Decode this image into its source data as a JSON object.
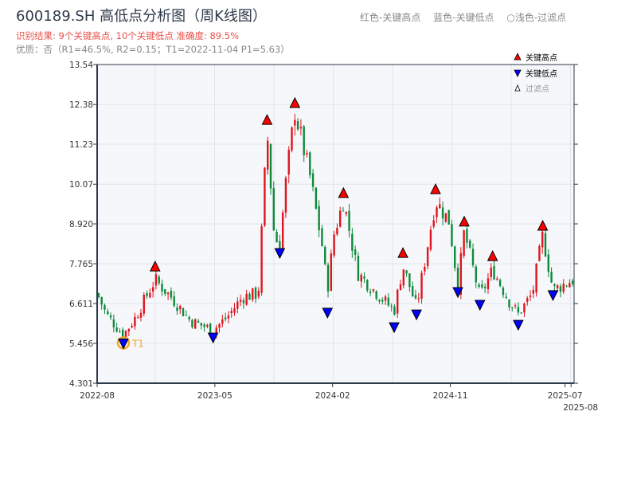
{
  "header": {
    "title": "600189.SH 高低点分析图（周K线图）",
    "result": "识别结果: 9个关键高点, 10个关键低点  准确度: 89.5%",
    "quality": "优质：否（R1=46.5%, R2=0.15；T1=2022-11-04 P1=5.63）",
    "legend_red": "红色-关键高点",
    "legend_blue": "蓝色-关键低点",
    "legend_light": "○浅色-过滤点"
  },
  "colors": {
    "up": "#e0141e",
    "down": "#0e8a3a",
    "high_marker": "#ff0000",
    "low_marker": "#0000ff",
    "t1": "#f5a623",
    "axis": "#2d3a4a"
  },
  "chart_data": {
    "type": "candlestick",
    "title": "600189.SH 高低点分析图（周K线图）",
    "ylim": [
      4.301,
      13.54
    ],
    "yticks": [
      "4.301",
      "5.456",
      "6.611",
      "7.765",
      "8.920",
      "10.07",
      "11.23",
      "12.38",
      "13.54"
    ],
    "ytick_values": [
      4.301,
      5.456,
      6.611,
      7.765,
      8.92,
      10.07,
      11.23,
      12.38,
      13.54
    ],
    "xlim_weeks": [
      0,
      158
    ],
    "xticks": [
      {
        "label": "2022-08",
        "week": 0
      },
      {
        "label": "2023-05",
        "week": 39
      },
      {
        "label": "2024-02",
        "week": 78
      },
      {
        "label": "2024-11",
        "week": 117
      },
      {
        "label": "2025-07",
        "week": 155
      },
      {
        "label": "2025-08",
        "week": 157
      }
    ],
    "price_path_weeks": [
      [
        0,
        6.9
      ],
      [
        3,
        6.3
      ],
      [
        8.7,
        5.7
      ],
      [
        12.6,
        6.2
      ],
      [
        19.2,
        7.3
      ],
      [
        24.5,
        6.8
      ],
      [
        31,
        6.1
      ],
      [
        38.4,
        5.85
      ],
      [
        42.9,
        6.2
      ],
      [
        48.2,
        6.8
      ],
      [
        53.4,
        6.9
      ],
      [
        56.3,
        11.6
      ],
      [
        58.7,
        8.5
      ],
      [
        60.5,
        8.35
      ],
      [
        62.6,
        10.2
      ],
      [
        65.5,
        12.2
      ],
      [
        70.5,
        10.3
      ],
      [
        74.5,
        8.3
      ],
      [
        76.3,
        7.0
      ],
      [
        78.4,
        8.6
      ],
      [
        81.6,
        9.6
      ],
      [
        86.3,
        7.5
      ],
      [
        91.6,
        7.0
      ],
      [
        98.4,
        6.4
      ],
      [
        101.3,
        7.7
      ],
      [
        105.8,
        6.5
      ],
      [
        112.1,
        9.6
      ],
      [
        116.6,
        9.0
      ],
      [
        119.5,
        7.1
      ],
      [
        121.6,
        8.7
      ],
      [
        126.8,
        6.8
      ],
      [
        131,
        7.6
      ],
      [
        136.3,
        6.7
      ],
      [
        139.5,
        6.3
      ],
      [
        144.2,
        6.9
      ],
      [
        147.6,
        8.6
      ],
      [
        151,
        7.0
      ],
      [
        157.6,
        7.3
      ]
    ],
    "key_points": [
      {
        "type": "low",
        "week": 8.7,
        "price": 5.63,
        "label": "T1"
      },
      {
        "type": "high",
        "week": 19.2,
        "price": 7.51
      },
      {
        "type": "low",
        "week": 38.4,
        "price": 5.8
      },
      {
        "type": "high",
        "week": 56.3,
        "price": 11.76
      },
      {
        "type": "low",
        "week": 60.5,
        "price": 8.25
      },
      {
        "type": "high",
        "week": 65.5,
        "price": 12.25
      },
      {
        "type": "low",
        "week": 76.3,
        "price": 6.52
      },
      {
        "type": "high",
        "week": 81.6,
        "price": 9.64
      },
      {
        "type": "low",
        "week": 98.4,
        "price": 6.1
      },
      {
        "type": "high",
        "week": 101.3,
        "price": 7.9
      },
      {
        "type": "low",
        "week": 105.8,
        "price": 6.47
      },
      {
        "type": "high",
        "week": 112.1,
        "price": 9.75
      },
      {
        "type": "low",
        "week": 119.5,
        "price": 7.12
      },
      {
        "type": "high",
        "week": 121.6,
        "price": 8.81
      },
      {
        "type": "low",
        "week": 126.8,
        "price": 6.75
      },
      {
        "type": "high",
        "week": 131,
        "price": 7.81
      },
      {
        "type": "low",
        "week": 139.5,
        "price": 6.17
      },
      {
        "type": "high",
        "week": 147.6,
        "price": 8.69
      },
      {
        "type": "low",
        "week": 151,
        "price": 7.03
      }
    ],
    "legend": [
      "关键高点",
      "关键低点",
      "过滤点"
    ],
    "legend_position": "top-right",
    "grid": true
  }
}
